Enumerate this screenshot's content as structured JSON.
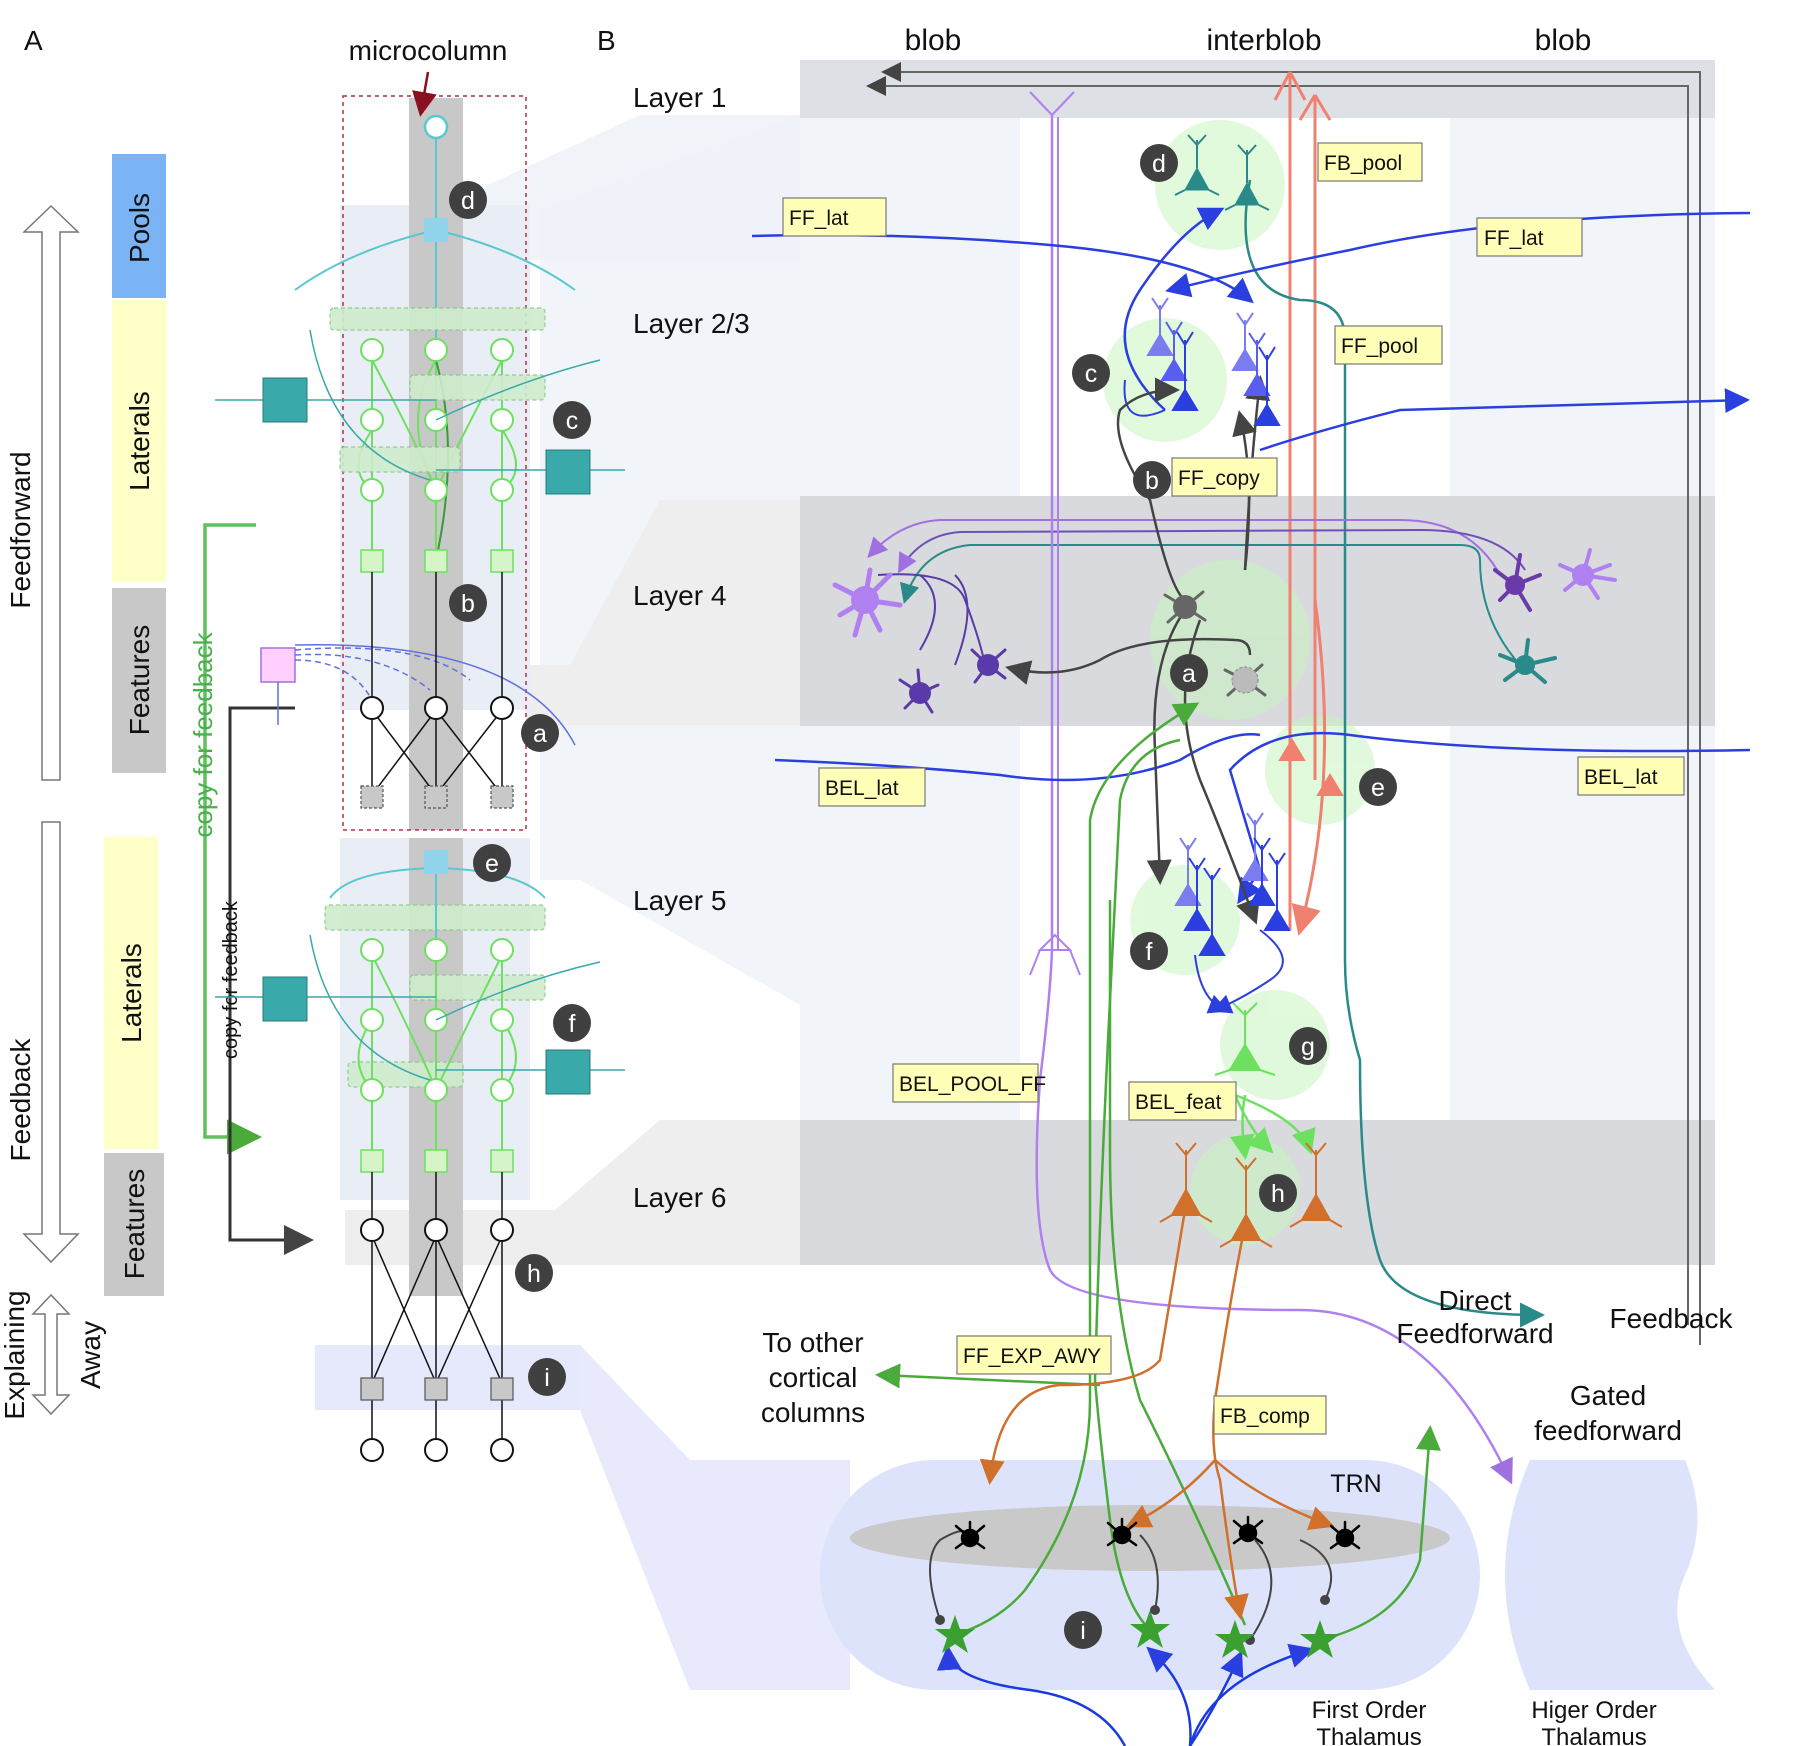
{
  "panels": {
    "a": "A",
    "b": "B"
  },
  "panel_a": {
    "microcolumn": "microcolumn",
    "pools": "Pools",
    "laterals": "Laterals",
    "features": "Features",
    "feedforward": "Feedforward",
    "feedback": "Feedback",
    "explaining": "Explaining",
    "away": "Away",
    "copy_green": "copy for feedback",
    "copy_black": "copy for feedback"
  },
  "columns": {
    "blob_left": "blob",
    "interblob": "interblob",
    "blob_right": "blob"
  },
  "layers": {
    "l1": "Layer 1",
    "l23": "Layer  2/3",
    "l4": "Layer  4",
    "l5": "Layer  5",
    "l6": "Layer  6"
  },
  "tags": {
    "ff_lat_left": "FF_lat",
    "fb_pool": "FB_pool",
    "ff_lat_right": "FF_lat",
    "ff_pool": "FF_pool",
    "ff_copy": "FF_copy",
    "bel_lat_left": "BEL_lat",
    "bel_lat_right": "BEL_lat",
    "bel_pool_ff": "BEL_POOL_FF",
    "bel_feat": "BEL_feat",
    "ff_exp_awy": "FF_EXP_AWY",
    "fb_comp": "FB_comp"
  },
  "badges": [
    "a",
    "b",
    "c",
    "d",
    "e",
    "f",
    "g",
    "h",
    "i"
  ],
  "outputs": {
    "direct_ff_1": "Direct",
    "direct_ff_2": "Feedforward",
    "feedback": "Feedback",
    "other_1": "To other",
    "other_2": "cortical",
    "other_3": "columns",
    "gated_1": "Gated",
    "gated_2": "feedforward",
    "trn": "TRN",
    "first_1": "First Order",
    "first_2": "Thalamus",
    "higher_1": "Higer Order",
    "higher_2": "Thalamus"
  },
  "colors": {
    "pools": "#7ab4f5",
    "laterals": "#ffffc8",
    "features": "#c8c8c8",
    "teal": "#3aa9a9",
    "blue": "#2b3fe0",
    "salmon": "#f08070",
    "violet": "#a070e0",
    "green": "#4aaa3a",
    "orange": "#d0702a",
    "purple_dark": "#5a3aa8"
  },
  "icons": [
    "pyramidal-neuron-icon",
    "stellate-neuron-icon",
    "thalamic-relay-neuron-icon",
    "trn-neuron-icon"
  ]
}
